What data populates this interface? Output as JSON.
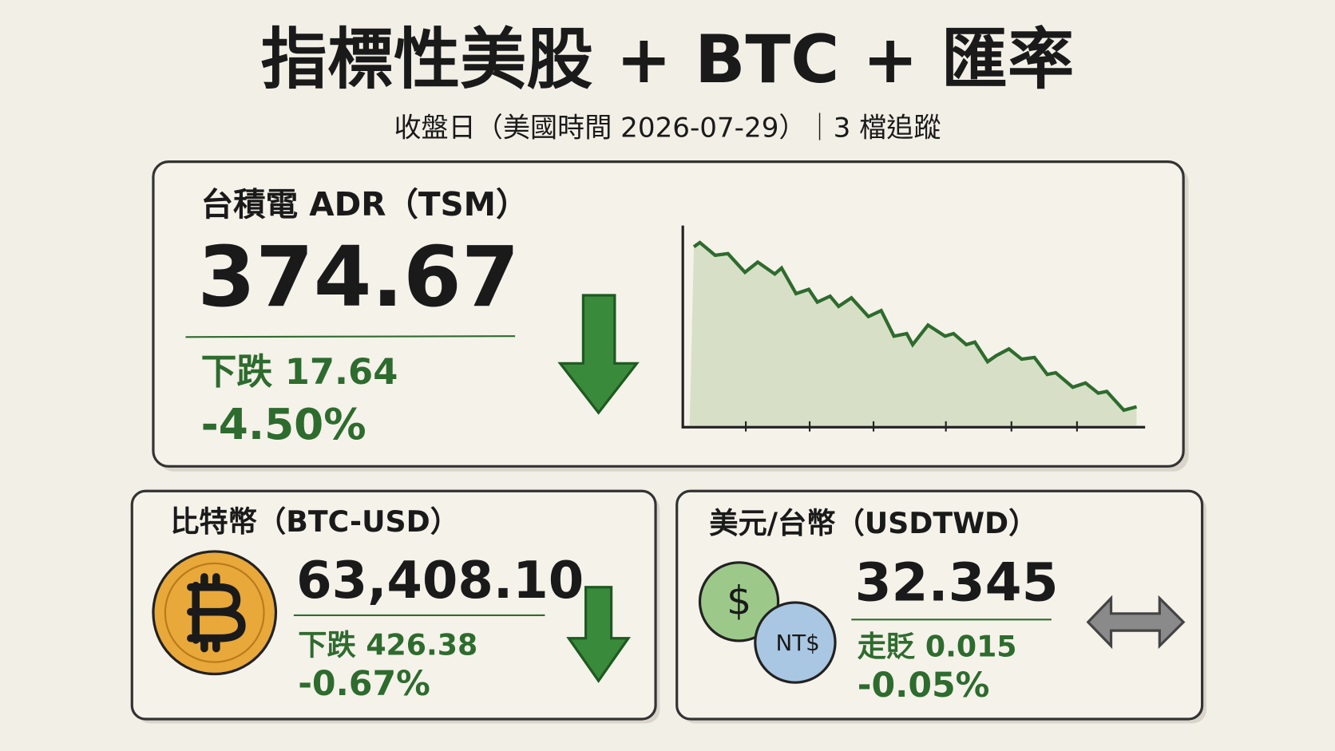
{
  "header": {
    "title": "指標性美股 + BTC + 匯率",
    "subtitle": "收盤日（美國時間 2026-07-29）｜3 檔追蹤"
  },
  "cards": [
    {
      "name": "台積電 ADR（TSM）",
      "price": "374.67",
      "change": "下跌 17.64",
      "percent": "-4.50%"
    },
    {
      "name": "比特幣（BTC-USD）",
      "price": "63,408.10",
      "change": "下跌 426.38",
      "percent": "-0.67%"
    },
    {
      "name": "美元/台幣（USDTWD）",
      "price": "32.345",
      "change": "走貶 0.015",
      "percent": "-0.05%",
      "icon_labels": [
        "$",
        "NT$"
      ]
    }
  ]
}
